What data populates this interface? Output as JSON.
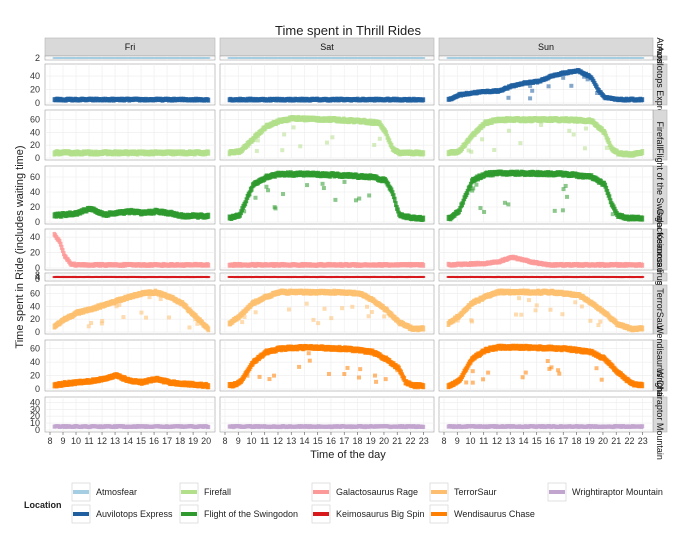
{
  "chart_data": {
    "type": "scatter",
    "title": "Time spent in Thrill Rides",
    "xlabel": "Time of the day",
    "ylabel": "Time spent in Ride (includes waiting time)",
    "grid": true,
    "days": [
      "Fri",
      "Sat",
      "Sun"
    ],
    "x_ticks": {
      "Fri": [
        "8",
        "9",
        "10",
        "11",
        "12",
        "13",
        "14",
        "15",
        "16",
        "17",
        "18",
        "19",
        "20"
      ],
      "Sat": [
        "8",
        "9",
        "10",
        "11",
        "12",
        "13",
        "14",
        "15",
        "16",
        "17",
        "18",
        "19",
        "20",
        "21",
        "22",
        "23"
      ],
      "Sun": [
        "8",
        "9",
        "10",
        "11",
        "12",
        "13",
        "14",
        "15",
        "16",
        "17",
        "18",
        "19",
        "20",
        "21",
        "22",
        "23"
      ]
    },
    "x_ranges": {
      "Fri": [
        8,
        20.3
      ],
      "Sat": [
        8,
        23.4
      ],
      "Sun": [
        8,
        23.4
      ]
    },
    "legend": {
      "title": "Location",
      "position": "bottom",
      "items": [
        {
          "label": "Atmosfear",
          "color": "#a6cee3"
        },
        {
          "label": "Auvilotops Express",
          "color": "#1f5fa0"
        },
        {
          "label": "Firefall",
          "color": "#b2df8a"
        },
        {
          "label": "Flight of the Swingodon",
          "color": "#2e9a2e"
        },
        {
          "label": "Galactosaurus Rage",
          "color": "#fb9a99"
        },
        {
          "label": "Keimosaurus Big Spin",
          "color": "#d7191c"
        },
        {
          "label": "TerrorSaur",
          "color": "#fdbf6f"
        },
        {
          "label": "Wendisaurus Chase",
          "color": "#ff7f00"
        },
        {
          "label": "Wrightiraptor Mountain",
          "color": "#c2a5cf"
        }
      ]
    },
    "rows": [
      {
        "strip": "Atmosfear",
        "color": "#a6cee3",
        "ylim": [
          0,
          1
        ],
        "yticks": [
          "2"
        ],
        "series": {
          "Fri": {
            "base": 0.2
          },
          "Sat": {
            "base": 0.2
          },
          "Sun": {
            "base": 0.2
          }
        }
      },
      {
        "strip": "Auvilotops Express",
        "color": "#1f5fa0",
        "ylim": [
          0,
          55
        ],
        "yticks": [
          "0",
          "20",
          "40"
        ],
        "series": {
          "Fri": {
            "base": 5
          },
          "Sat": {
            "base": 5
          },
          "Sun": {
            "curve": [
              [
                8.3,
                5
              ],
              [
                9,
                12
              ],
              [
                10,
                15
              ],
              [
                11,
                17
              ],
              [
                12,
                18
              ],
              [
                13,
                25
              ],
              [
                14,
                30
              ],
              [
                15,
                32
              ],
              [
                16,
                40
              ],
              [
                17,
                45
              ],
              [
                18,
                48
              ],
              [
                19,
                38
              ],
              [
                19.5,
                20
              ],
              [
                20,
                8
              ],
              [
                21,
                5
              ],
              [
                23,
                5
              ]
            ]
          }
        }
      },
      {
        "strip": "Firefall",
        "color": "#b2df8a",
        "ylim": [
          0,
          72
        ],
        "yticks": [
          "0",
          "20",
          "40",
          "60"
        ],
        "series": {
          "Fri": {
            "base": 8
          },
          "Sat": {
            "curve": [
              [
                8,
                8
              ],
              [
                9,
                10
              ],
              [
                10,
                30
              ],
              [
                11,
                50
              ],
              [
                12,
                58
              ],
              [
                13,
                62
              ],
              [
                16,
                60
              ],
              [
                18,
                58
              ],
              [
                19.5,
                55
              ],
              [
                20,
                40
              ],
              [
                20.5,
                15
              ],
              [
                21,
                8
              ],
              [
                23,
                8
              ]
            ]
          },
          "Sun": {
            "curve": [
              [
                8,
                8
              ],
              [
                9,
                10
              ],
              [
                10,
                35
              ],
              [
                11,
                55
              ],
              [
                12,
                60
              ],
              [
                13,
                60
              ],
              [
                17,
                60
              ],
              [
                19,
                58
              ],
              [
                20,
                40
              ],
              [
                20.5,
                15
              ],
              [
                21,
                8
              ],
              [
                22,
                5
              ],
              [
                23,
                10
              ]
            ]
          }
        }
      },
      {
        "strip": "Flight of the Swingodon",
        "color": "#2e9a2e",
        "ylim": [
          0,
          72
        ],
        "yticks": [
          "0",
          "20",
          "40",
          "60"
        ],
        "series": {
          "Fri": {
            "curve": [
              [
                8,
                8
              ],
              [
                10,
                12
              ],
              [
                11,
                18
              ],
              [
                12,
                10
              ],
              [
                13,
                12
              ],
              [
                14,
                14
              ],
              [
                15,
                12
              ],
              [
                16,
                14
              ],
              [
                17,
                12
              ],
              [
                18,
                8
              ],
              [
                20,
                8
              ]
            ]
          },
          "Sat": {
            "curve": [
              [
                8.3,
                5
              ],
              [
                9,
                10
              ],
              [
                10,
                50
              ],
              [
                11,
                60
              ],
              [
                12,
                64
              ],
              [
                14,
                64
              ],
              [
                17,
                62
              ],
              [
                19,
                60
              ],
              [
                20,
                55
              ],
              [
                20.5,
                40
              ],
              [
                21,
                10
              ],
              [
                22,
                5
              ],
              [
                23,
                5
              ]
            ]
          },
          "Sun": {
            "curve": [
              [
                8.3,
                5
              ],
              [
                9,
                15
              ],
              [
                10,
                55
              ],
              [
                11,
                64
              ],
              [
                12,
                65
              ],
              [
                14,
                65
              ],
              [
                17,
                64
              ],
              [
                19,
                60
              ],
              [
                20,
                50
              ],
              [
                20.5,
                25
              ],
              [
                21,
                8
              ],
              [
                22,
                5
              ],
              [
                23,
                5
              ]
            ]
          }
        }
      },
      {
        "strip": "Galactosaurus Rage",
        "color": "#fb9a99",
        "ylim": [
          0,
          48
        ],
        "yticks": [
          "0",
          "20",
          "40"
        ],
        "series": {
          "Fri": {
            "curve": [
              [
                8.1,
                45
              ],
              [
                8.6,
                35
              ],
              [
                9,
                15
              ],
              [
                9.5,
                5
              ],
              [
                10,
                4
              ],
              [
                20,
                4
              ]
            ]
          },
          "Sat": {
            "base": 4
          },
          "Sun": {
            "curve": [
              [
                8,
                4
              ],
              [
                11,
                6
              ],
              [
                12,
                8
              ],
              [
                13,
                14
              ],
              [
                14,
                10
              ],
              [
                15,
                6
              ],
              [
                16,
                4
              ],
              [
                23,
                4
              ]
            ]
          }
        }
      },
      {
        "strip": "Keimosaurus Big Spin",
        "color": "#d7191c",
        "ylim": [
          0,
          8
        ],
        "yticks": [
          "0",
          "4",
          "8"
        ],
        "series": {
          "Fri": {
            "base": 4
          },
          "Sat": {
            "base": 4
          },
          "Sun": {
            "base": 4
          }
        }
      },
      {
        "strip": "TerrorSaur",
        "color": "#fdbf6f",
        "ylim": [
          0,
          70
        ],
        "yticks": [
          "0",
          "20",
          "40",
          "60"
        ],
        "series": {
          "Fri": {
            "curve": [
              [
                8,
                5
              ],
              [
                9,
                20
              ],
              [
                10,
                30
              ],
              [
                11,
                35
              ],
              [
                12,
                42
              ],
              [
                13,
                48
              ],
              [
                14,
                55
              ],
              [
                15,
                60
              ],
              [
                16,
                62
              ],
              [
                17,
                55
              ],
              [
                18,
                45
              ],
              [
                19,
                25
              ],
              [
                20,
                5
              ]
            ]
          },
          "Sat": {
            "curve": [
              [
                8,
                10
              ],
              [
                9,
                25
              ],
              [
                10,
                45
              ],
              [
                11,
                55
              ],
              [
                12,
                62
              ],
              [
                14,
                62
              ],
              [
                16,
                62
              ],
              [
                18,
                60
              ],
              [
                19,
                50
              ],
              [
                20,
                35
              ],
              [
                21,
                15
              ],
              [
                22,
                5
              ],
              [
                23,
                5
              ]
            ]
          },
          "Sun": {
            "curve": [
              [
                8,
                10
              ],
              [
                9,
                25
              ],
              [
                10,
                45
              ],
              [
                11,
                55
              ],
              [
                12,
                62
              ],
              [
                14,
                62
              ],
              [
                16,
                62
              ],
              [
                18,
                58
              ],
              [
                19,
                45
              ],
              [
                20,
                30
              ],
              [
                21,
                12
              ],
              [
                22,
                5
              ],
              [
                23,
                5
              ]
            ]
          }
        }
      },
      {
        "strip": "Wendisaurus Chase",
        "color": "#ff7f00",
        "ylim": [
          0,
          70
        ],
        "yticks": [
          "0",
          "20",
          "40",
          "60"
        ],
        "series": {
          "Fri": {
            "curve": [
              [
                8,
                5
              ],
              [
                9,
                8
              ],
              [
                10,
                10
              ],
              [
                11,
                12
              ],
              [
                12,
                15
              ],
              [
                13,
                20
              ],
              [
                14,
                12
              ],
              [
                15,
                10
              ],
              [
                16,
                15
              ],
              [
                17,
                10
              ],
              [
                18,
                8
              ],
              [
                20,
                5
              ]
            ]
          },
          "Sat": {
            "curve": [
              [
                8.3,
                5
              ],
              [
                9,
                10
              ],
              [
                10,
                40
              ],
              [
                11,
                55
              ],
              [
                12,
                60
              ],
              [
                14,
                62
              ],
              [
                17,
                60
              ],
              [
                19,
                55
              ],
              [
                20,
                45
              ],
              [
                21,
                30
              ],
              [
                21.5,
                10
              ],
              [
                22,
                5
              ],
              [
                23,
                5
              ]
            ]
          },
          "Sun": {
            "curve": [
              [
                8.3,
                5
              ],
              [
                9,
                12
              ],
              [
                10,
                45
              ],
              [
                11,
                58
              ],
              [
                12,
                62
              ],
              [
                14,
                62
              ],
              [
                17,
                60
              ],
              [
                19,
                55
              ],
              [
                20,
                45
              ],
              [
                21,
                25
              ],
              [
                22,
                8
              ],
              [
                23,
                5
              ]
            ]
          }
        }
      },
      {
        "strip": "Wrightiraptor Mountain",
        "color": "#c2a5cf",
        "ylim": [
          0,
          45
        ],
        "yticks": [
          "0",
          "10",
          "20",
          "30",
          "40"
        ],
        "series": {
          "Fri": {
            "base": 5
          },
          "Sat": {
            "base": 5
          },
          "Sun": {
            "base": 5
          }
        }
      }
    ]
  }
}
